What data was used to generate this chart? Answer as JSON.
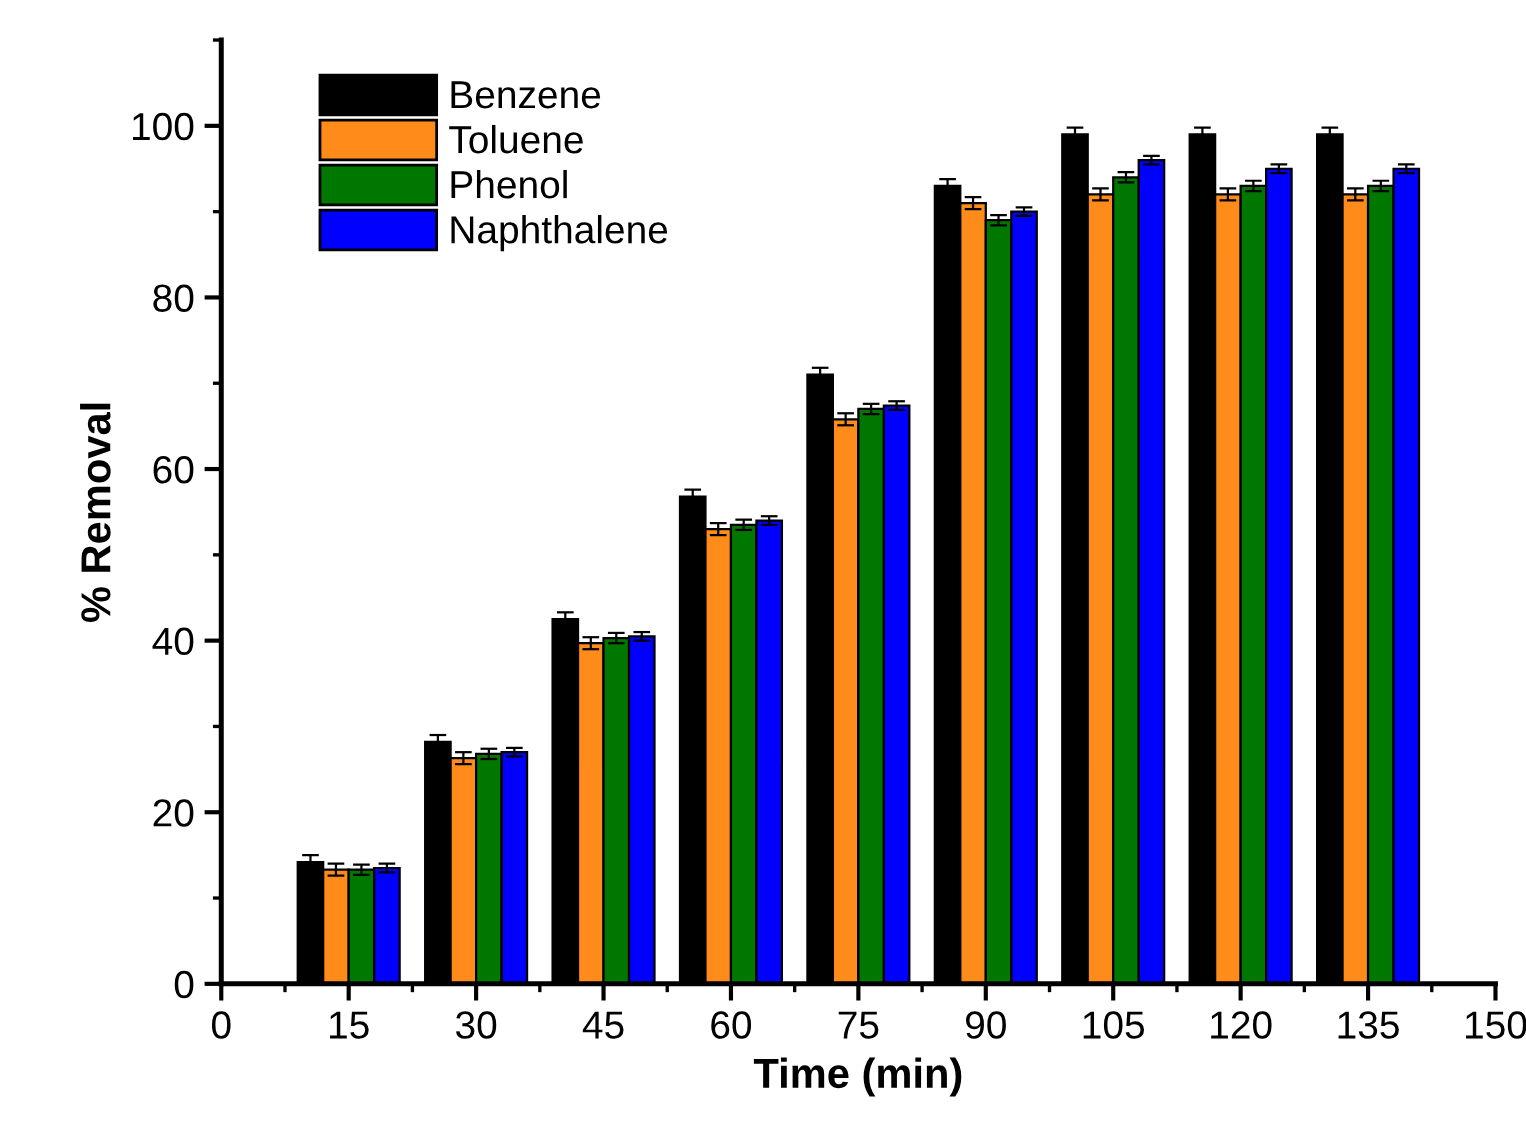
{
  "chart_data": {
    "type": "bar",
    "xlabel": "Time (min)",
    "ylabel": "% Removal",
    "x": [
      15,
      30,
      45,
      60,
      75,
      90,
      105,
      120,
      135
    ],
    "series": [
      {
        "name": "Benzene",
        "color": "#000000",
        "values": [
          14.2,
          28.2,
          42.5,
          56.8,
          71,
          93,
          99,
          99,
          99
        ],
        "errors": [
          0.8,
          0.8,
          0.8,
          0.8,
          0.8,
          0.8,
          0.8,
          0.8,
          0.8
        ]
      },
      {
        "name": "Toluene",
        "color": "#ff8c1a",
        "values": [
          13.3,
          26.3,
          39.7,
          53,
          65.8,
          91,
          92,
          92,
          92
        ],
        "errors": [
          0.7,
          0.7,
          0.7,
          0.7,
          0.7,
          0.7,
          0.7,
          0.7,
          0.7
        ]
      },
      {
        "name": "Phenol",
        "color": "#007800",
        "values": [
          13.3,
          26.8,
          40.3,
          53.5,
          67,
          89,
          94,
          93,
          93
        ],
        "errors": [
          0.6,
          0.6,
          0.6,
          0.6,
          0.6,
          0.6,
          0.6,
          0.6,
          0.6
        ]
      },
      {
        "name": "Naphthalene",
        "color": "#0000ff",
        "values": [
          13.5,
          27,
          40.5,
          54,
          67.4,
          90,
          96,
          95,
          95
        ],
        "errors": [
          0.5,
          0.5,
          0.5,
          0.5,
          0.5,
          0.5,
          0.5,
          0.5,
          0.5
        ]
      }
    ],
    "xlim": [
      0,
      150
    ],
    "xticks": [
      0,
      15,
      30,
      45,
      60,
      75,
      90,
      105,
      120,
      135,
      150
    ],
    "ylim": [
      0,
      110
    ],
    "yticks": [
      0,
      20,
      40,
      60,
      80,
      100
    ],
    "grid": false,
    "legend": "top left"
  }
}
